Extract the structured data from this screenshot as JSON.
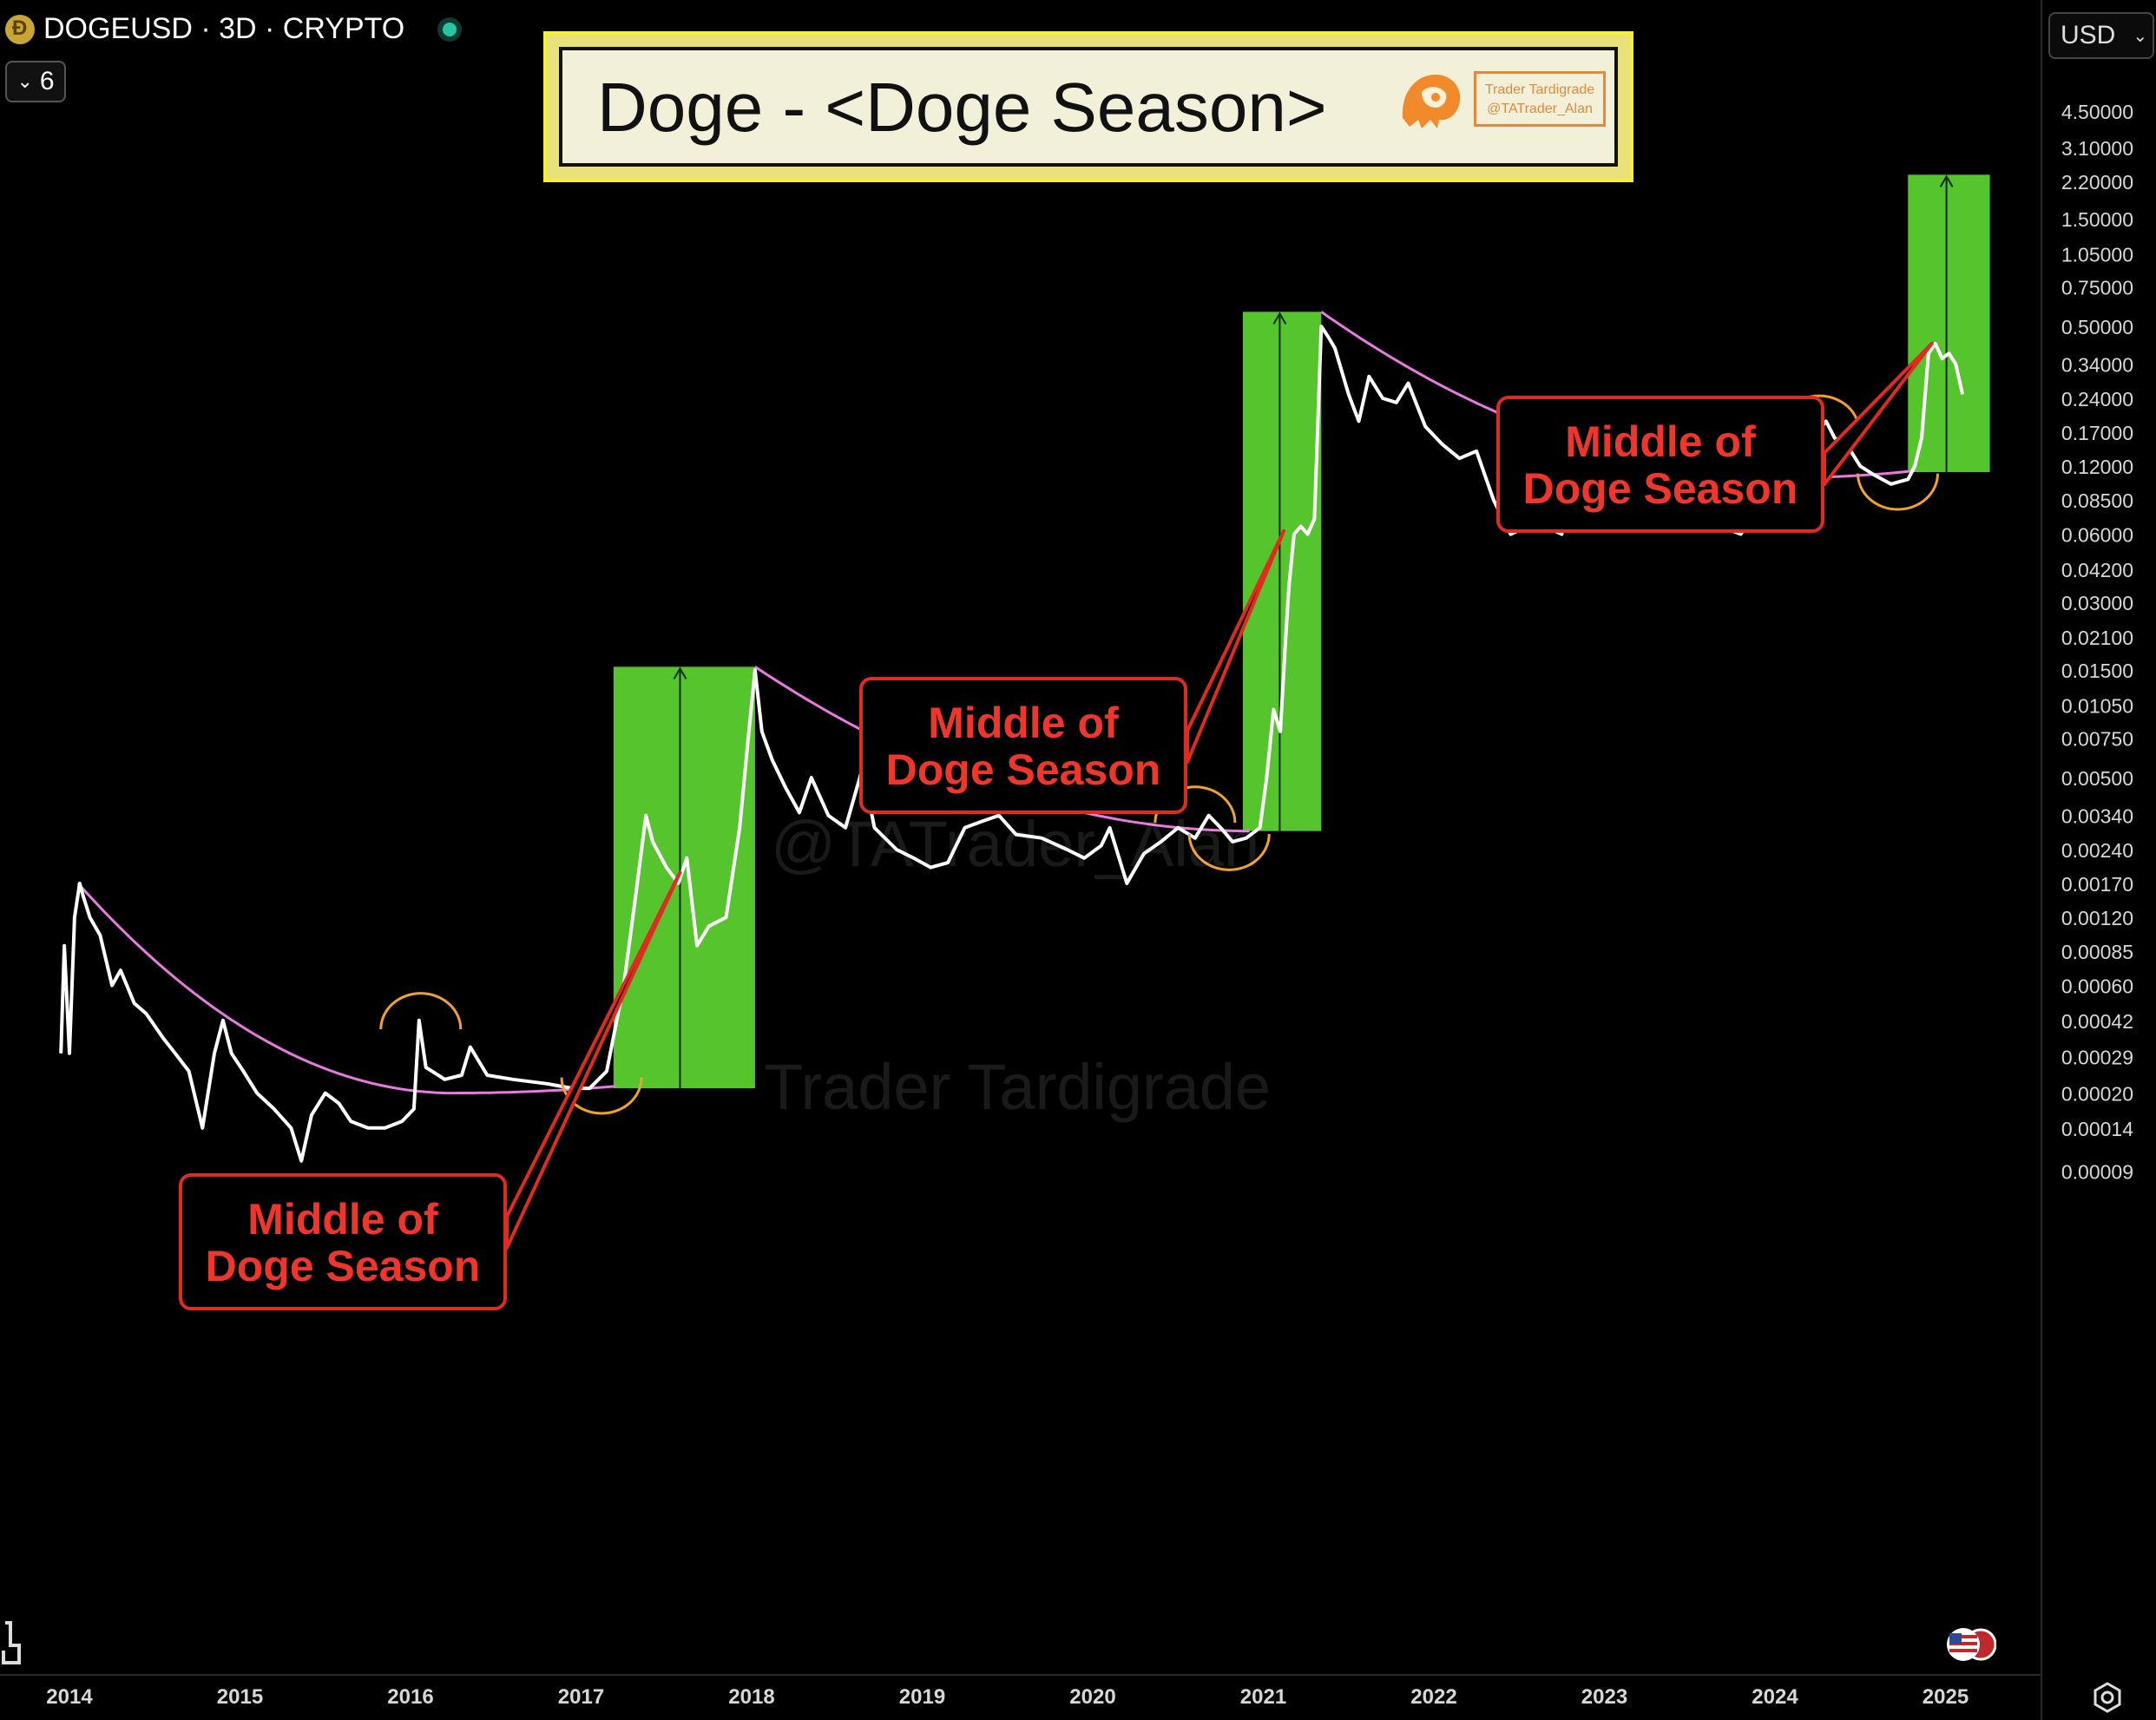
{
  "header": {
    "symbol_line": "DOGEUSD · 3D · CRYPTO",
    "indicator_count": "6",
    "currency": "USD"
  },
  "title": {
    "text": "Doge - <Doge Season>",
    "stamp_line1": "Trader Tardigrade",
    "stamp_line2": "@TATrader_Alan"
  },
  "watermarks": [
    "@TATrader_Alan",
    "Trader Tardigrade"
  ],
  "annotations": {
    "label_text": [
      "Middle of",
      "Doge Season"
    ]
  },
  "colors": {
    "background": "#000000",
    "price_line": "#ffffff",
    "season_box": "#56c42c",
    "curve": "#e87ae0",
    "arc": "#f0a22b",
    "label_border": "#e02b20",
    "label_text": "#f0362a"
  },
  "chart_data": {
    "type": "line",
    "scale": "log",
    "x_ticks": [
      "2014",
      "2015",
      "2016",
      "2017",
      "2018",
      "2019",
      "2020",
      "2021",
      "2022",
      "2023",
      "2024",
      "2025"
    ],
    "y_ticks": [
      "4.50000",
      "3.10000",
      "2.20000",
      "1.50000",
      "1.05000",
      "0.75000",
      "0.50000",
      "0.34000",
      "0.24000",
      "0.17000",
      "0.12000",
      "0.08500",
      "0.06000",
      "0.04200",
      "0.03000",
      "0.02100",
      "0.01500",
      "0.01050",
      "0.00750",
      "0.00500",
      "0.00340",
      "0.00240",
      "0.00170",
      "0.00120",
      "0.00085",
      "0.00060",
      "0.00042",
      "0.00029",
      "0.00020",
      "0.00014",
      "0.00009"
    ],
    "ylim": [
      9e-05,
      6.0
    ],
    "series": [
      {
        "points": [
          [
            2013.95,
            0.0003
          ],
          [
            2013.97,
            0.0009
          ],
          [
            2014.0,
            0.0003
          ],
          [
            2014.03,
            0.0012
          ],
          [
            2014.06,
            0.0017
          ],
          [
            2014.08,
            0.0015
          ],
          [
            2014.12,
            0.0012
          ],
          [
            2014.18,
            0.001
          ],
          [
            2014.25,
            0.0006
          ],
          [
            2014.3,
            0.0007
          ],
          [
            2014.38,
            0.0005
          ],
          [
            2014.45,
            0.00045
          ],
          [
            2014.55,
            0.00035
          ],
          [
            2014.62,
            0.0003
          ],
          [
            2014.7,
            0.00025
          ],
          [
            2014.78,
            0.00014
          ],
          [
            2014.85,
            0.0003
          ],
          [
            2014.9,
            0.00042
          ],
          [
            2014.95,
            0.0003
          ],
          [
            2015.02,
            0.00025
          ],
          [
            2015.1,
            0.0002
          ],
          [
            2015.2,
            0.00017
          ],
          [
            2015.3,
            0.00014
          ],
          [
            2015.36,
            0.0001
          ],
          [
            2015.42,
            0.00016
          ],
          [
            2015.5,
            0.0002
          ],
          [
            2015.58,
            0.00018
          ],
          [
            2015.65,
            0.00015
          ],
          [
            2015.75,
            0.00014
          ],
          [
            2015.85,
            0.00014
          ],
          [
            2015.95,
            0.00015
          ],
          [
            2016.02,
            0.00017
          ],
          [
            2016.05,
            0.00042
          ],
          [
            2016.09,
            0.00026
          ],
          [
            2016.2,
            0.00023
          ],
          [
            2016.3,
            0.00024
          ],
          [
            2016.35,
            0.00032
          ],
          [
            2016.45,
            0.00024
          ],
          [
            2016.6,
            0.00023
          ],
          [
            2016.8,
            0.00022
          ],
          [
            2016.95,
            0.00021
          ],
          [
            2017.05,
            0.00021
          ],
          [
            2017.15,
            0.00025
          ],
          [
            2017.25,
            0.0006
          ],
          [
            2017.32,
            0.0015
          ],
          [
            2017.38,
            0.0034
          ],
          [
            2017.42,
            0.0026
          ],
          [
            2017.5,
            0.002
          ],
          [
            2017.57,
            0.0017
          ],
          [
            2017.62,
            0.0022
          ],
          [
            2017.68,
            0.0009
          ],
          [
            2017.75,
            0.0011
          ],
          [
            2017.85,
            0.0012
          ],
          [
            2017.93,
            0.003
          ],
          [
            2017.98,
            0.0075
          ],
          [
            2018.02,
            0.015
          ],
          [
            2018.06,
            0.008
          ],
          [
            2018.12,
            0.006
          ],
          [
            2018.2,
            0.0045
          ],
          [
            2018.28,
            0.0035
          ],
          [
            2018.35,
            0.005
          ],
          [
            2018.45,
            0.0034
          ],
          [
            2018.55,
            0.003
          ],
          [
            2018.65,
            0.0055
          ],
          [
            2018.72,
            0.003
          ],
          [
            2018.85,
            0.0024
          ],
          [
            2018.95,
            0.0022
          ],
          [
            2019.05,
            0.002
          ],
          [
            2019.15,
            0.0021
          ],
          [
            2019.25,
            0.003
          ],
          [
            2019.35,
            0.0032
          ],
          [
            2019.45,
            0.0034
          ],
          [
            2019.55,
            0.0028
          ],
          [
            2019.7,
            0.0027
          ],
          [
            2019.85,
            0.0024
          ],
          [
            2019.95,
            0.0022
          ],
          [
            2020.05,
            0.0025
          ],
          [
            2020.1,
            0.003
          ],
          [
            2020.2,
            0.0017
          ],
          [
            2020.3,
            0.0023
          ],
          [
            2020.4,
            0.0026
          ],
          [
            2020.5,
            0.003
          ],
          [
            2020.6,
            0.0027
          ],
          [
            2020.68,
            0.0034
          ],
          [
            2020.75,
            0.003
          ],
          [
            2020.82,
            0.0026
          ],
          [
            2020.9,
            0.0027
          ],
          [
            2020.98,
            0.003
          ],
          [
            2021.02,
            0.005
          ],
          [
            2021.06,
            0.01
          ],
          [
            2021.1,
            0.008
          ],
          [
            2021.13,
            0.02
          ],
          [
            2021.15,
            0.035
          ],
          [
            2021.18,
            0.06
          ],
          [
            2021.22,
            0.065
          ],
          [
            2021.26,
            0.06
          ],
          [
            2021.3,
            0.07
          ],
          [
            2021.34,
            0.5
          ],
          [
            2021.38,
            0.45
          ],
          [
            2021.42,
            0.4
          ],
          [
            2021.5,
            0.25
          ],
          [
            2021.56,
            0.19
          ],
          [
            2021.62,
            0.3
          ],
          [
            2021.7,
            0.24
          ],
          [
            2021.78,
            0.23
          ],
          [
            2021.85,
            0.28
          ],
          [
            2021.95,
            0.18
          ],
          [
            2022.05,
            0.15
          ],
          [
            2022.15,
            0.13
          ],
          [
            2022.25,
            0.14
          ],
          [
            2022.35,
            0.085
          ],
          [
            2022.45,
            0.06
          ],
          [
            2022.55,
            0.065
          ],
          [
            2022.65,
            0.065
          ],
          [
            2022.75,
            0.06
          ],
          [
            2022.82,
            0.12
          ],
          [
            2022.88,
            0.09
          ],
          [
            2022.95,
            0.075
          ],
          [
            2023.05,
            0.085
          ],
          [
            2023.15,
            0.075
          ],
          [
            2023.25,
            0.08
          ],
          [
            2023.35,
            0.075
          ],
          [
            2023.45,
            0.065
          ],
          [
            2023.55,
            0.065
          ],
          [
            2023.65,
            0.063
          ],
          [
            2023.75,
            0.062
          ],
          [
            2023.8,
            0.06
          ],
          [
            2023.88,
            0.075
          ],
          [
            2023.95,
            0.09
          ],
          [
            2024.05,
            0.08
          ],
          [
            2024.15,
            0.085
          ],
          [
            2024.2,
            0.12
          ],
          [
            2024.25,
            0.17
          ],
          [
            2024.3,
            0.19
          ],
          [
            2024.35,
            0.16
          ],
          [
            2024.42,
            0.15
          ],
          [
            2024.5,
            0.12
          ],
          [
            2024.58,
            0.11
          ],
          [
            2024.68,
            0.1
          ],
          [
            2024.78,
            0.105
          ],
          [
            2024.82,
            0.12
          ],
          [
            2024.86,
            0.16
          ],
          [
            2024.9,
            0.38
          ],
          [
            2024.94,
            0.42
          ],
          [
            2024.98,
            0.36
          ],
          [
            2025.02,
            0.38
          ],
          [
            2025.06,
            0.34
          ],
          [
            2025.1,
            0.25
          ]
        ]
      }
    ],
    "season_boxes": [
      {
        "x0": 2017.19,
        "x1": 2018.02,
        "y_low": 0.00021,
        "y_high": 0.0155
      },
      {
        "x0": 2020.88,
        "x1": 2021.34,
        "y_low": 0.0029,
        "y_high": 0.58
      },
      {
        "x0": 2024.78,
        "x1": 2025.26,
        "y_low": 0.113,
        "y_high": 2.35
      }
    ],
    "curves": [
      {
        "x0": 2014.05,
        "x1": 2017.2,
        "y_start": 0.0017,
        "y_min": 0.0002,
        "x_min": 2016.25
      },
      {
        "x0": 2018.02,
        "x1": 2020.92,
        "y_start": 0.0155,
        "y_min": 0.0029,
        "x_min": 2020.92
      },
      {
        "x0": 2021.34,
        "x1": 2024.82,
        "y_start": 0.58,
        "y_min": 0.107,
        "x_min": 2024.1
      }
    ],
    "arcs": [
      {
        "x": 2016.06,
        "y": 0.00045,
        "shape": "cap"
      },
      {
        "x": 2017.12,
        "y": 0.0002,
        "shape": "cup"
      },
      {
        "x": 2020.6,
        "y": 0.0037,
        "shape": "cap"
      },
      {
        "x": 2020.8,
        "y": 0.0024,
        "shape": "cup"
      },
      {
        "x": 2024.26,
        "y": 0.2,
        "shape": "cap"
      },
      {
        "x": 2024.72,
        "y": 0.095,
        "shape": "cup"
      }
    ],
    "annotation_targets": [
      {
        "x": 2017.58,
        "y": 0.0019
      },
      {
        "x": 2021.12,
        "y": 0.062
      },
      {
        "x": 2024.92,
        "y": 0.42
      }
    ]
  }
}
